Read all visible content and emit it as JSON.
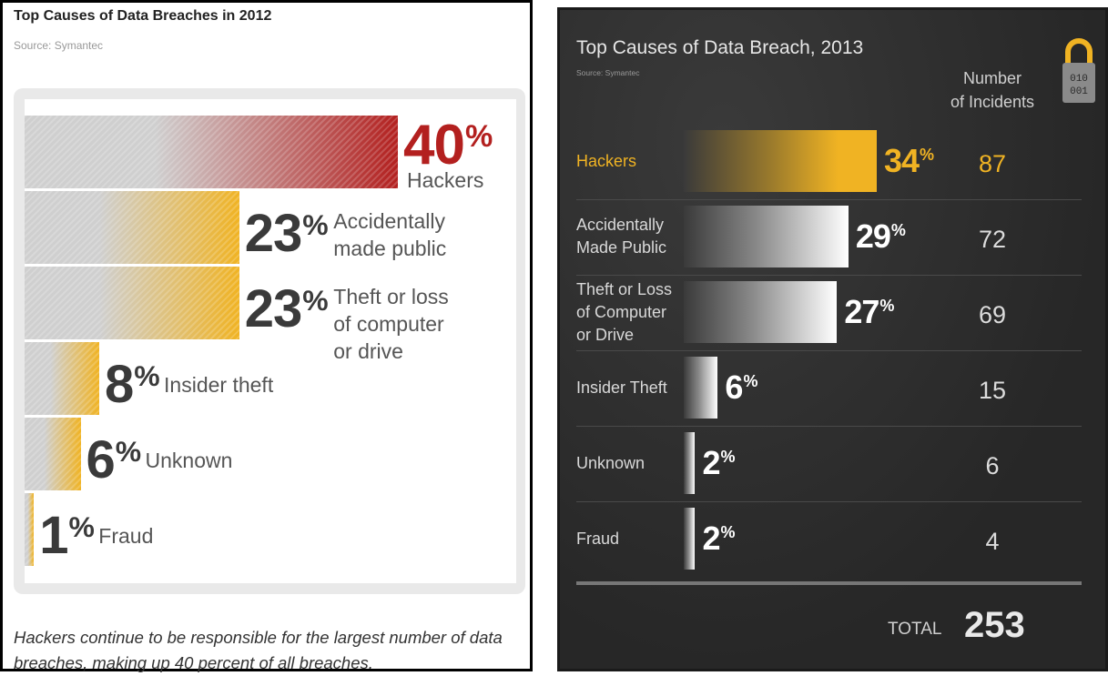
{
  "chart_data": [
    {
      "type": "bar",
      "title": "Top Causes of Data Breaches in 2012",
      "subtitle": "Source: Symantec",
      "categories": [
        "Hackers",
        "Accidentally made public",
        "Theft or loss of computer or drive",
        "Insider theft",
        "Unknown",
        "Fraud"
      ],
      "values": [
        40,
        23,
        23,
        8,
        6,
        1
      ],
      "value_labels": [
        "40%",
        "23%",
        "23%",
        "8%",
        "6%",
        "1%"
      ],
      "display_labels": [
        "Hackers",
        "Accidentally\nmade public",
        "Theft or loss\nof computer\nor drive",
        "Insider theft",
        "Unknown",
        "Fraud"
      ],
      "orientation": "horizontal",
      "caption": "Hackers continue to be responsible for the largest number of data breaches, making up 40 percent of all breaches.",
      "colors": {
        "highlight": "#b3201f",
        "accent": "#f0b323",
        "base": "#cfcfcf"
      }
    },
    {
      "type": "bar",
      "title": "Top Causes of Data Breach, 2013",
      "subtitle": "Source: Symantec",
      "categories": [
        "Hackers",
        "Accidentally Made Public",
        "Theft or Loss of Computer or Drive",
        "Insider Theft",
        "Unknown",
        "Fraud"
      ],
      "display_labels": [
        "Hackers",
        "Accidentally\nMade Public",
        "Theft or Loss\nof Computer\nor Drive",
        "Insider Theft",
        "Unknown",
        "Fraud"
      ],
      "values": [
        34,
        29,
        27,
        6,
        2,
        2
      ],
      "value_labels": [
        "34%",
        "29%",
        "27%",
        "6%",
        "2%",
        "2%"
      ],
      "incidents": [
        87,
        72,
        69,
        15,
        6,
        4
      ],
      "incidents_header": "Number\nof Incidents",
      "total_label": "TOTAL",
      "total_value": 253,
      "orientation": "horizontal",
      "colors": {
        "highlight": "#f0b323",
        "base": "#ffffff",
        "background": "#2c2c2c"
      }
    }
  ]
}
